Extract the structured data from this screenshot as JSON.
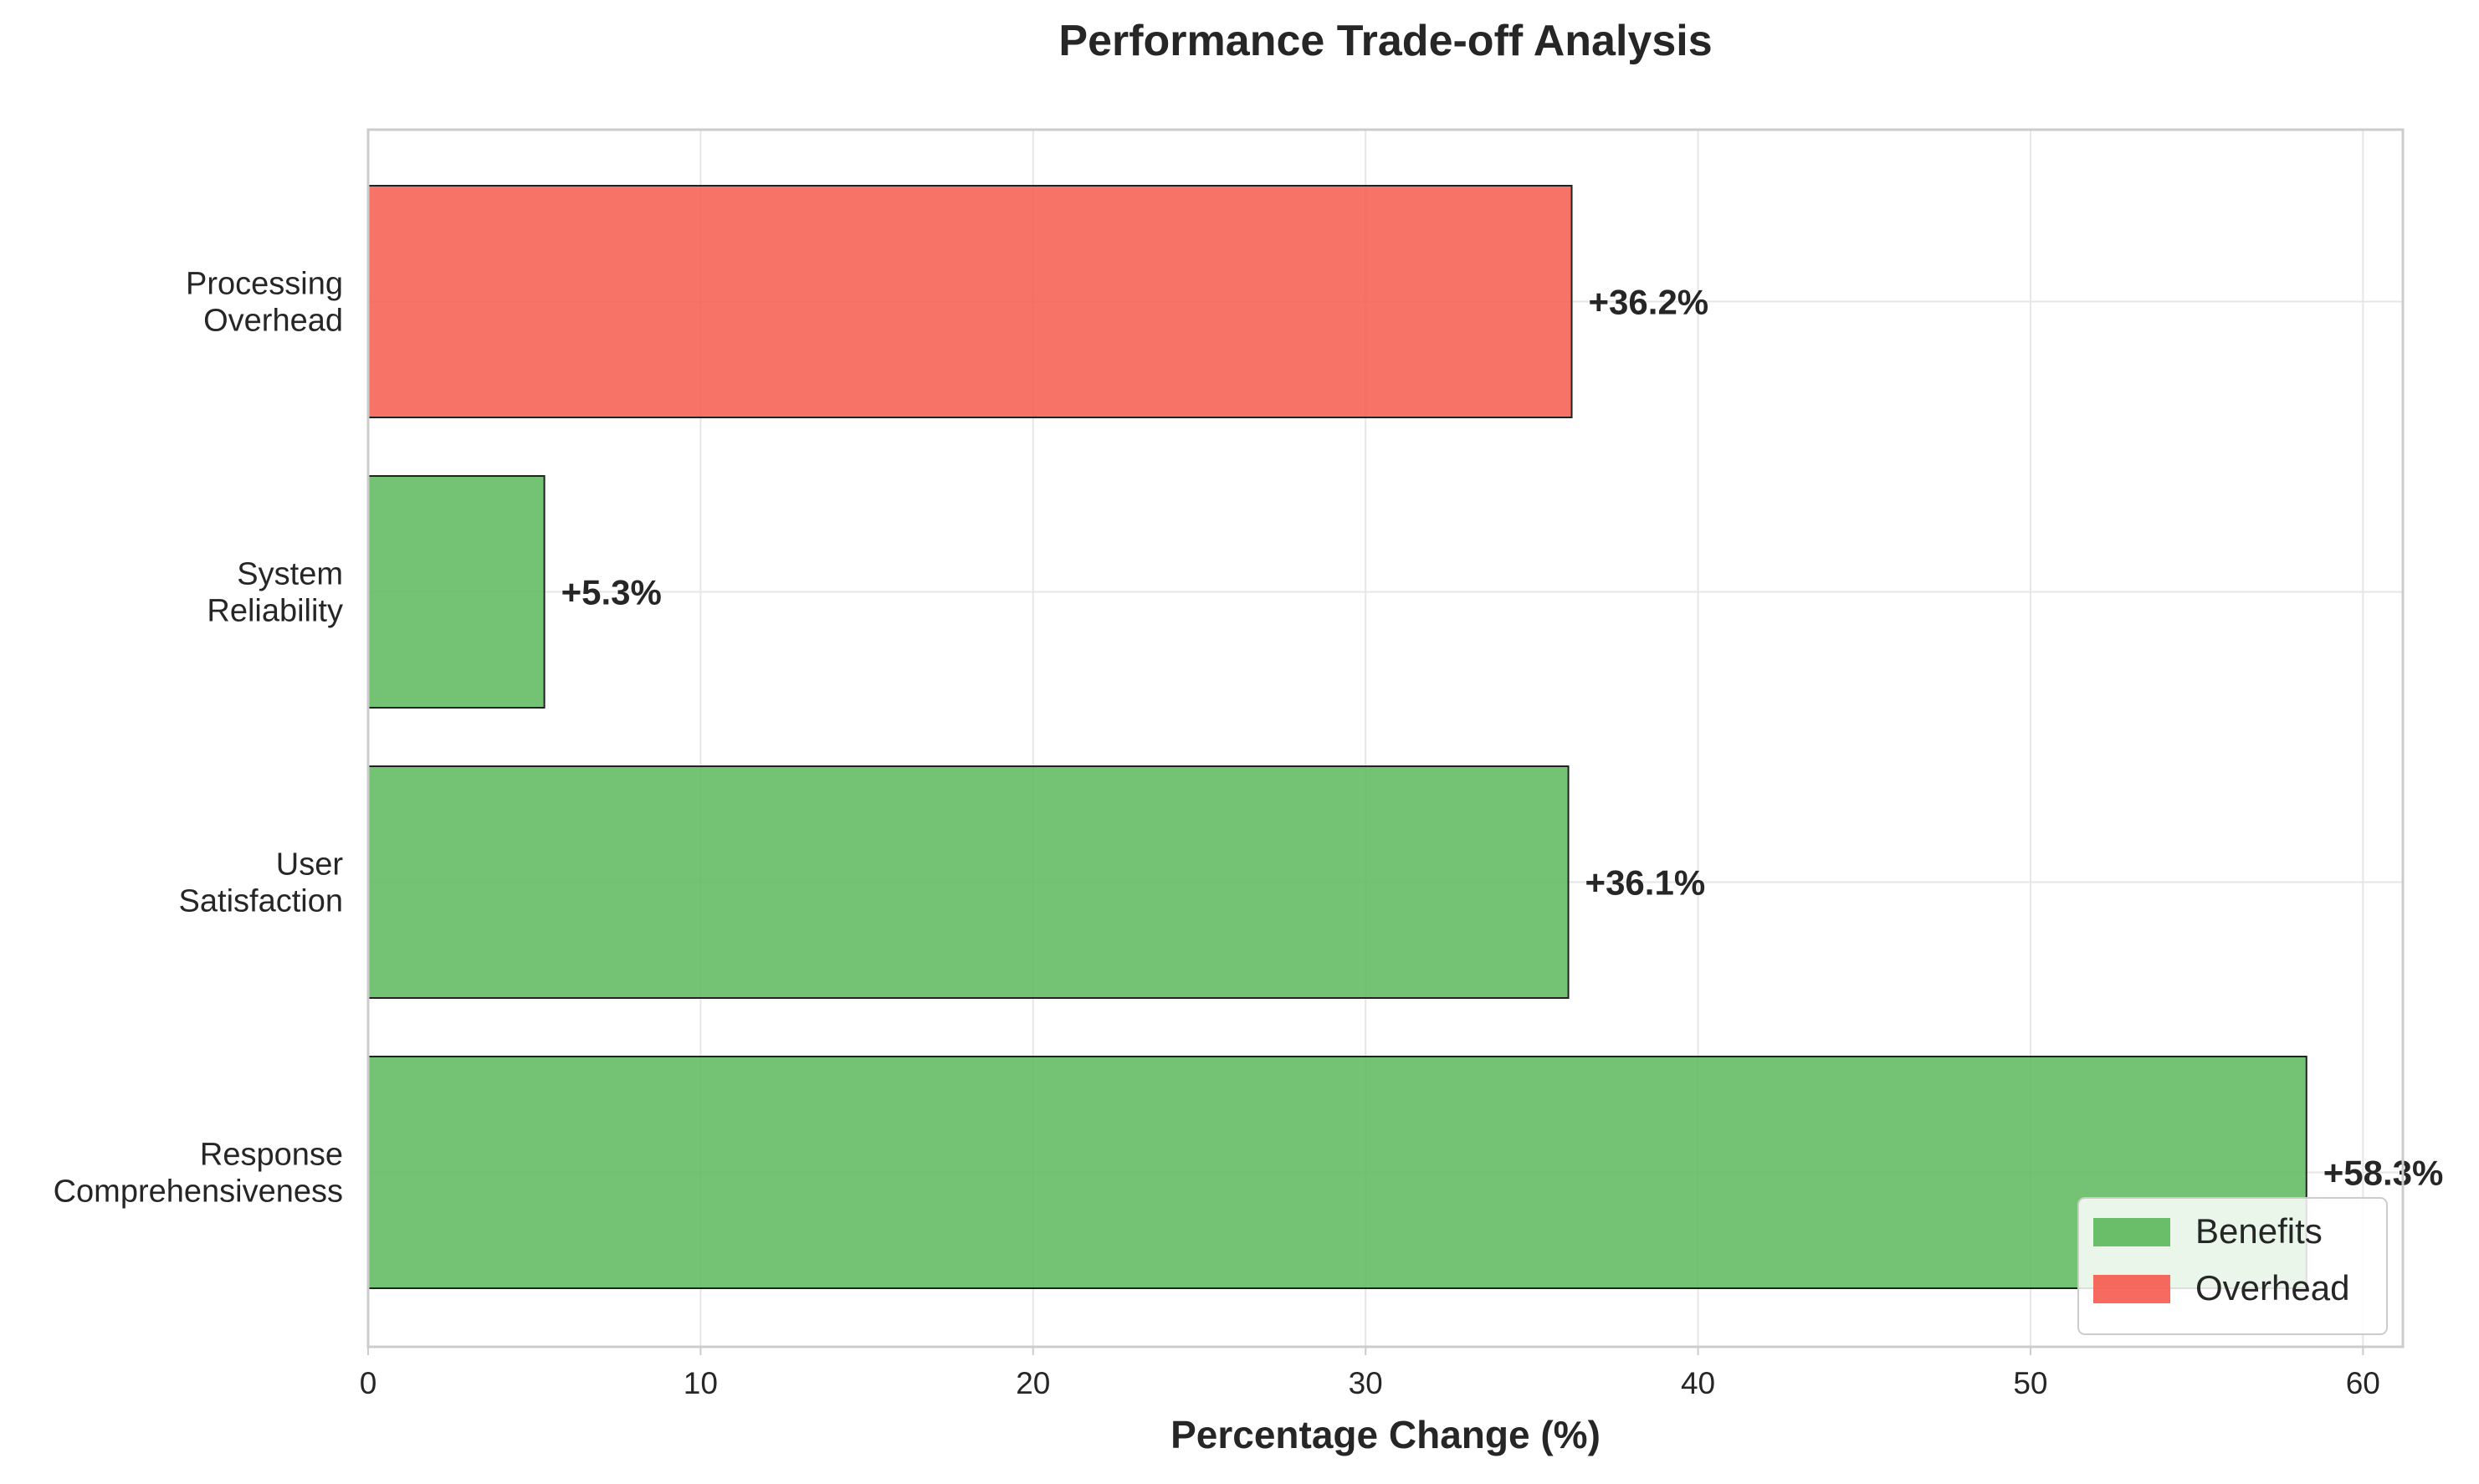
{
  "chart_data": {
    "type": "bar",
    "orientation": "horizontal",
    "title": "Performance Trade-off Analysis",
    "xlabel": "Percentage Change (%)",
    "ylabel": "",
    "xlim": [
      0,
      61.2
    ],
    "xticks": [
      0,
      10,
      20,
      30,
      40,
      50,
      60
    ],
    "grid": true,
    "legend_placement": "lower-right",
    "categories": [
      {
        "lines": [
          "Response",
          "Comprehensiveness"
        ]
      },
      {
        "lines": [
          "User",
          "Satisfaction"
        ]
      },
      {
        "lines": [
          "System",
          "Reliability"
        ]
      },
      {
        "lines": [
          "Processing",
          "Overhead"
        ]
      }
    ],
    "bars": [
      {
        "value": 58.3,
        "label": "+58.3%",
        "group": "Benefits"
      },
      {
        "value": 36.1,
        "label": "+36.1%",
        "group": "Benefits"
      },
      {
        "value": 5.3,
        "label": "+5.3%",
        "group": "Benefits"
      },
      {
        "value": 36.2,
        "label": "+36.2%",
        "group": "Overhead"
      }
    ],
    "legend": [
      {
        "name": "Benefits",
        "color": "#5cb85c"
      },
      {
        "name": "Overhead",
        "color": "#f65a4e"
      }
    ],
    "colors": {
      "grid": "#e6e6e6",
      "axes_edge": "#cccccc",
      "bar_edge": "#222222",
      "text": "#262626"
    }
  }
}
